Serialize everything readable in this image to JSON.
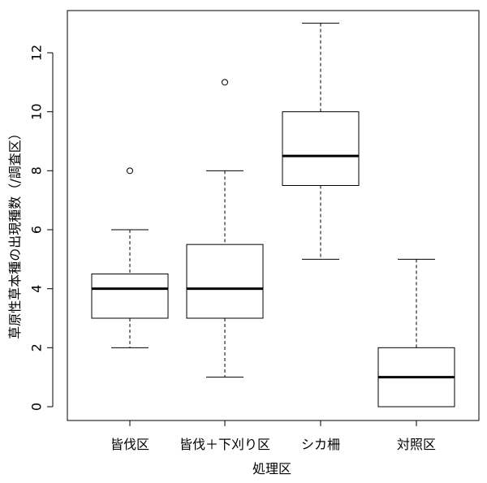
{
  "chart_data": {
    "type": "box",
    "xlabel": "処理区",
    "ylabel": "草原性草本種の出現種数（/調査区）",
    "ylim": [
      -0.5,
      13.5
    ],
    "yticks": [
      0,
      2,
      4,
      6,
      8,
      10,
      12
    ],
    "categories": [
      "皆伐区",
      "皆伐＋下刈り区",
      "シカ柵",
      "対照区"
    ],
    "boxes": [
      {
        "whisker_low": 2,
        "q1": 3,
        "median": 4,
        "q3": 4.5,
        "whisker_high": 6,
        "outliers": [
          8
        ]
      },
      {
        "whisker_low": 1,
        "q1": 3,
        "median": 4,
        "q3": 5.5,
        "whisker_high": 8,
        "outliers": [
          11
        ]
      },
      {
        "whisker_low": 5,
        "q1": 7.5,
        "median": 8.5,
        "q3": 10,
        "whisker_high": 13,
        "outliers": []
      },
      {
        "whisker_low": 0,
        "q1": 0,
        "median": 1,
        "q3": 2,
        "whisker_high": 5,
        "outliers": []
      }
    ],
    "grid": false,
    "colors": {
      "box_fill": "#ffffff",
      "stroke": "#000000"
    }
  }
}
